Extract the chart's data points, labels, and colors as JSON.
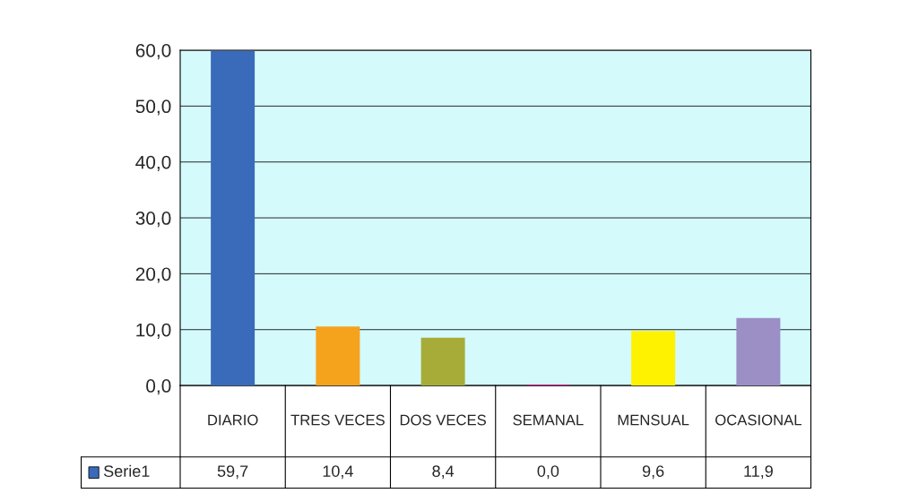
{
  "chart_data": {
    "type": "bar",
    "categories": [
      "DIARIO",
      "TRES VECES",
      "DOS VECES",
      "SEMANAL",
      "MENSUAL",
      "OCASIONAL"
    ],
    "series": [
      {
        "name": "Serie1",
        "color": "#3a6bba",
        "values": [
          59.7,
          10.4,
          8.4,
          0.0,
          9.6,
          11.9
        ],
        "colors": [
          "#3a6bba",
          "#f5a21d",
          "#a6ac37",
          "#c0127a",
          "#fff200",
          "#9b8fc6"
        ],
        "value_labels": [
          "59,7",
          "10,4",
          "8,4",
          "0,0",
          "9,6",
          "11,9"
        ]
      }
    ],
    "ylim": [
      0,
      60
    ],
    "yticks": [
      {
        "value": 0,
        "label": "0,0"
      },
      {
        "value": 10,
        "label": "10,0"
      },
      {
        "value": 20,
        "label": "20,0"
      },
      {
        "value": 30,
        "label": "30,0"
      },
      {
        "value": 40,
        "label": "40,0"
      },
      {
        "value": 50,
        "label": "50,0"
      },
      {
        "value": 60,
        "label": "60,0"
      }
    ],
    "grid": "y",
    "legend": "bottom left"
  }
}
